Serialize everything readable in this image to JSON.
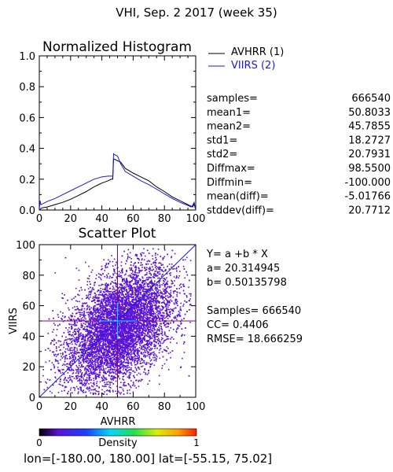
{
  "title": "VHI,  Sep. 2 2017 (week 35)",
  "colors": {
    "avhrr": "#000000",
    "viirs": "#1a1adb",
    "scatter": "#5a12d8",
    "crosshair": "#8a007a",
    "cyan": "#00e0ff"
  },
  "chart_data": [
    {
      "type": "line",
      "title": "Normalized Histogram",
      "xlim": [
        0,
        100
      ],
      "ylim": [
        0,
        1.0
      ],
      "x_ticks": [
        "0",
        "20",
        "40",
        "60",
        "80",
        "100"
      ],
      "y_ticks": [
        "0.0",
        "0.2",
        "0.4",
        "0.6",
        "0.8",
        "1.0"
      ],
      "legend": [
        "AVHRR (1)",
        "VIIRS (2)"
      ],
      "legend_position": "top-right outside",
      "series": [
        {
          "name": "AVHRR (1)",
          "color": "#000000",
          "x": [
            0,
            1,
            2,
            5,
            10,
            15,
            20,
            25,
            30,
            35,
            40,
            44,
            46,
            47,
            47.5,
            48,
            50,
            52,
            55,
            60,
            65,
            70,
            75,
            80,
            85,
            90,
            95,
            97,
            98,
            99,
            100
          ],
          "y": [
            0.0,
            0.01,
            0.015,
            0.02,
            0.035,
            0.05,
            0.07,
            0.095,
            0.12,
            0.15,
            0.175,
            0.19,
            0.2,
            0.2,
            0.33,
            0.33,
            0.32,
            0.31,
            0.27,
            0.24,
            0.215,
            0.19,
            0.15,
            0.12,
            0.085,
            0.06,
            0.035,
            0.025,
            0.02,
            0.04,
            0.0
          ]
        },
        {
          "name": "VIIRS (2)",
          "color": "#1a1adb",
          "x": [
            0,
            0.5,
            1,
            2,
            5,
            10,
            15,
            20,
            25,
            30,
            35,
            40,
            44,
            46,
            47,
            47.5,
            48,
            50,
            52,
            55,
            60,
            65,
            70,
            75,
            80,
            85,
            90,
            95,
            97,
            98,
            99,
            100
          ],
          "y": [
            0.0,
            0.06,
            0.035,
            0.04,
            0.055,
            0.075,
            0.1,
            0.125,
            0.15,
            0.175,
            0.2,
            0.215,
            0.22,
            0.22,
            0.22,
            0.365,
            0.36,
            0.35,
            0.3,
            0.25,
            0.22,
            0.19,
            0.165,
            0.135,
            0.105,
            0.075,
            0.05,
            0.03,
            0.02,
            0.03,
            0.05,
            0.0
          ]
        }
      ]
    },
    {
      "type": "scatter",
      "title": "Scatter Plot",
      "xlabel": "AVHRR",
      "ylabel": "VIIRS",
      "xlim": [
        0,
        100
      ],
      "ylim": [
        0,
        100
      ],
      "x_ticks": [
        "0",
        "20",
        "40",
        "60",
        "80",
        "100"
      ],
      "y_ticks": [
        "0",
        "20",
        "40",
        "60",
        "80",
        "100"
      ],
      "crosshair": [
        50,
        50
      ],
      "fit": {
        "a": 20.314945,
        "b": 0.50135798
      },
      "density_colorbar": {
        "label": "Density",
        "min": "0",
        "max": "1"
      }
    }
  ],
  "histogram_stats": [
    {
      "label": "samples=",
      "value": "666540"
    },
    {
      "label": "mean1=",
      "value": "50.8033"
    },
    {
      "label": "mean2=",
      "value": "45.7855"
    },
    {
      "label": "std1=",
      "value": "18.2727"
    },
    {
      "label": "std2=",
      "value": "20.7931"
    },
    {
      "label": "Diffmax=",
      "value": "98.5500"
    },
    {
      "label": "Diffmin=",
      "value": "-100.000"
    },
    {
      "label": "mean(diff)=",
      "value": "-5.01766"
    },
    {
      "label": "stddev(diff)=",
      "value": "20.7712"
    }
  ],
  "scatter_stats": {
    "equation": "Y= a +b * X",
    "a": "a= 20.314945",
    "b": "b= 0.50135798",
    "samples": "Samples= 666540",
    "cc": "CC=  0.4406",
    "rmse": "RMSE= 18.666259"
  },
  "footer": "lon=[-180.00, 180.00] lat=[-55.15, 75.02]"
}
